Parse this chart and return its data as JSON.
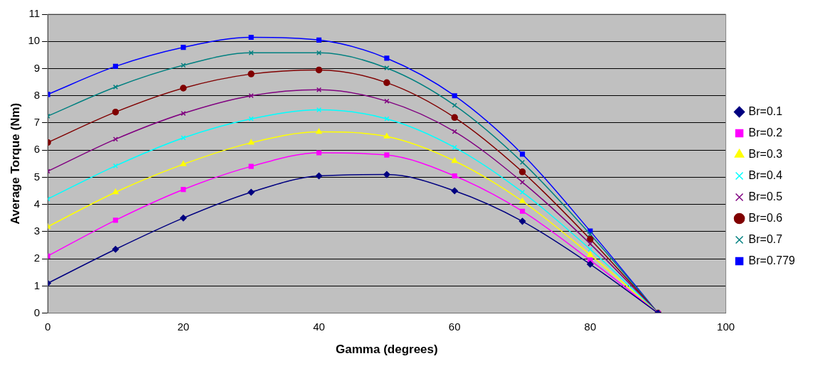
{
  "chart_data": {
    "type": "line",
    "xlabel": "Gamma (degrees)",
    "ylabel": "Average Torque (Nm)",
    "x": [
      0,
      10,
      20,
      30,
      40,
      50,
      60,
      70,
      80,
      90
    ],
    "xlim": [
      0,
      100
    ],
    "xticks": [
      0,
      20,
      40,
      60,
      80,
      100
    ],
    "ylim": [
      0,
      11
    ],
    "yticks": [
      0,
      1,
      2,
      3,
      4,
      5,
      6,
      7,
      8,
      9,
      10,
      11
    ],
    "grid": "y",
    "legend": "right",
    "series": [
      {
        "name": "Br=0.1",
        "color": "#000080",
        "marker": "diamond",
        "values": [
          1.1,
          2.35,
          3.5,
          4.45,
          5.05,
          5.1,
          4.5,
          3.38,
          1.8,
          0
        ]
      },
      {
        "name": "Br=0.2",
        "color": "#ff00ff",
        "marker": "square",
        "values": [
          2.1,
          3.42,
          4.55,
          5.4,
          5.9,
          5.82,
          5.05,
          3.75,
          1.95,
          0
        ]
      },
      {
        "name": "Br=0.3",
        "color": "#ffff00",
        "marker": "triangle",
        "values": [
          3.18,
          4.45,
          5.48,
          6.27,
          6.67,
          6.5,
          5.6,
          4.12,
          2.15,
          0
        ]
      },
      {
        "name": "Br=0.4",
        "color": "#00ffff",
        "marker": "cross",
        "values": [
          4.2,
          5.42,
          6.45,
          7.15,
          7.48,
          7.15,
          6.1,
          4.45,
          2.35,
          0
        ]
      },
      {
        "name": "Br=0.5",
        "color": "#800080",
        "marker": "cross",
        "values": [
          5.22,
          6.4,
          7.35,
          8.0,
          8.22,
          7.8,
          6.68,
          4.82,
          2.55,
          0
        ]
      },
      {
        "name": "Br=0.6",
        "color": "#800000",
        "marker": "circle",
        "values": [
          6.28,
          7.4,
          8.28,
          8.8,
          8.95,
          8.48,
          7.2,
          5.2,
          2.72,
          0
        ]
      },
      {
        "name": "Br=0.7",
        "color": "#008080",
        "marker": "cross",
        "values": [
          7.25,
          8.32,
          9.12,
          9.58,
          9.58,
          9.02,
          7.65,
          5.55,
          2.9,
          0
        ]
      },
      {
        "name": "Br=0.779",
        "color": "#0000ff",
        "marker": "square",
        "values": [
          8.05,
          9.08,
          9.78,
          10.15,
          10.05,
          9.38,
          8.0,
          5.85,
          3.02,
          0
        ]
      }
    ]
  }
}
